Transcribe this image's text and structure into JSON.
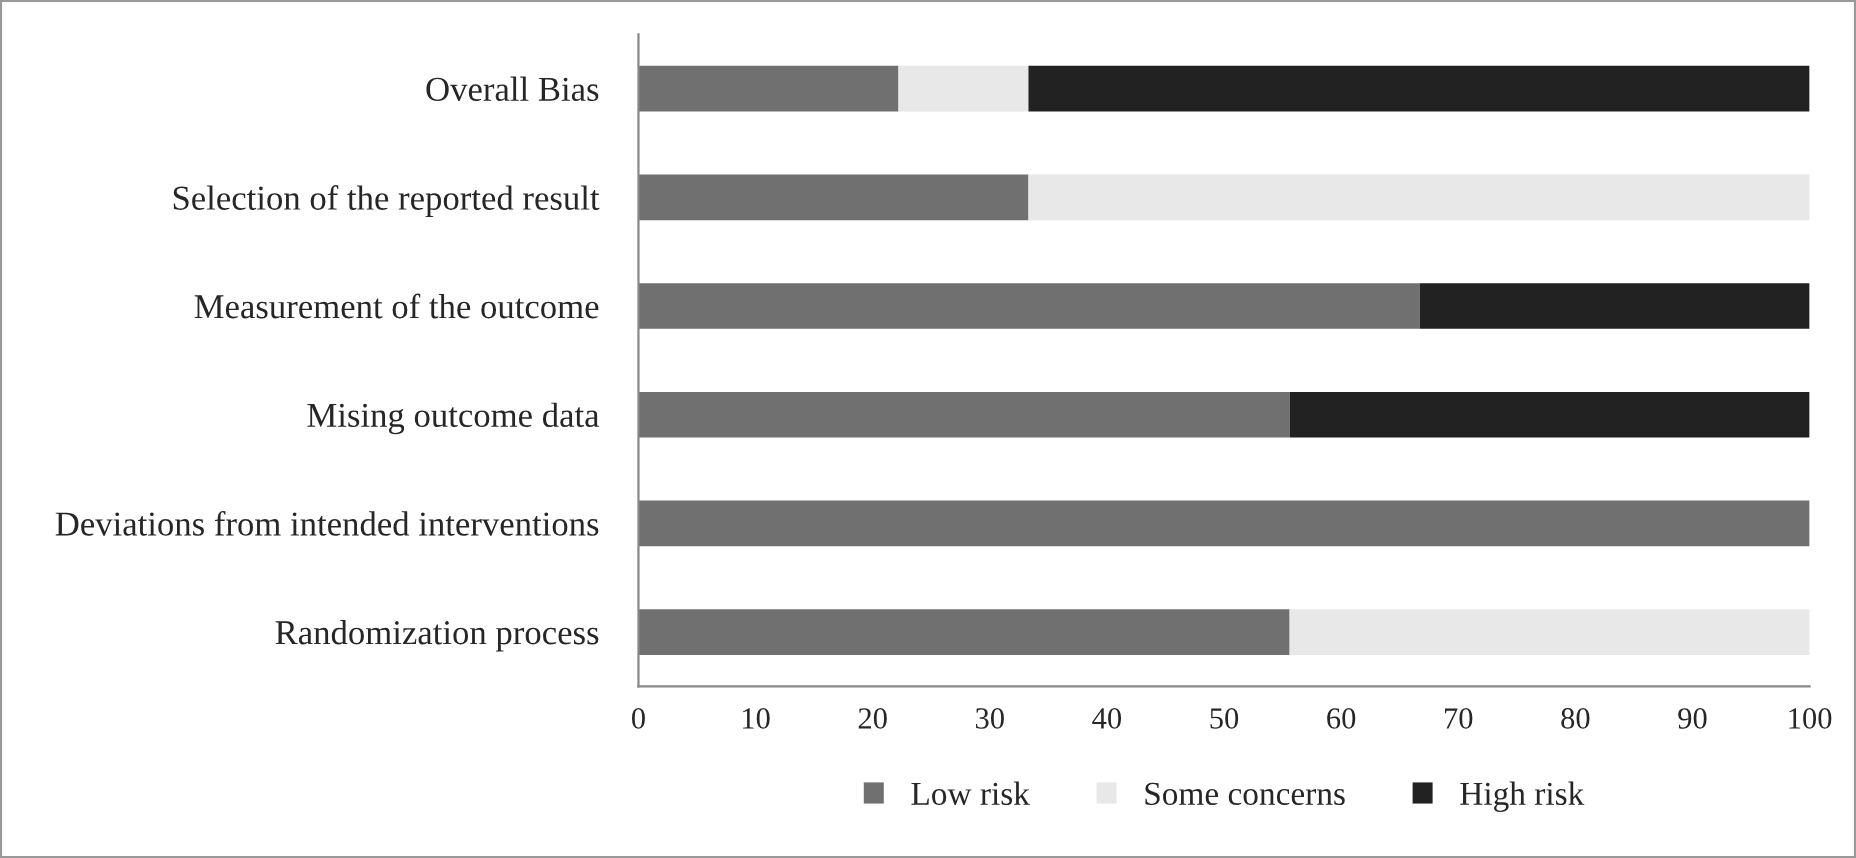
{
  "chart_data": {
    "type": "bar",
    "orientation": "horizontal",
    "stacked": true,
    "categories": [
      "Overall Bias",
      "Selection of the reported result",
      "Measurement of the outcome",
      "Mising outcome data",
      "Deviations from intended interventions",
      "Randomization process"
    ],
    "series": [
      {
        "name": "Low risk",
        "color": "#707070",
        "values": [
          22.2,
          33.3,
          66.7,
          55.6,
          100,
          55.6
        ]
      },
      {
        "name": "Some concerns",
        "color": "#e8e8e8",
        "values": [
          11.1,
          66.7,
          0,
          0,
          0,
          44.4
        ]
      },
      {
        "name": "High risk",
        "color": "#222222",
        "values": [
          66.7,
          0,
          33.3,
          44.4,
          0,
          0
        ]
      }
    ],
    "xlim": [
      0,
      100
    ],
    "xticks": [
      0,
      10,
      20,
      30,
      40,
      50,
      60,
      70,
      80,
      90,
      100
    ],
    "grid": false,
    "legend": "bottom"
  }
}
